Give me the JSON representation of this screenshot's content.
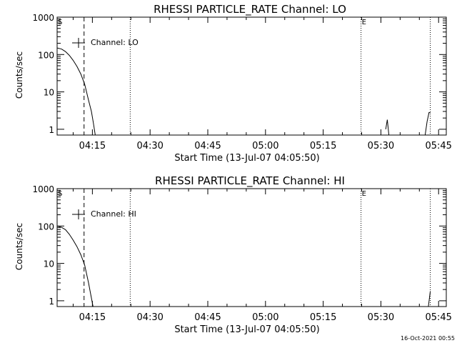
{
  "footer_timestamp": "16-Oct-2021 00:55",
  "chart_data": [
    {
      "type": "line",
      "title": "RHESSI PARTICLE_RATE Channel: LO",
      "xlabel": "Start Time (13-Jul-07 04:05:50)",
      "ylabel": "Counts/sec",
      "y_scale": "log",
      "ylim": [
        0.7,
        1000
      ],
      "xlim": [
        "04:05:50",
        "05:47:00"
      ],
      "x_ticks": [
        "04:15",
        "04:30",
        "04:45",
        "05:00",
        "05:15",
        "05:30",
        "05:45"
      ],
      "y_ticks": [
        "1",
        "10",
        "100",
        "1000"
      ],
      "legend": {
        "label": "Channel: LO",
        "position": "top-left"
      },
      "markers": [
        {
          "label": "S",
          "x": "04:05:50",
          "style": "dotted"
        },
        {
          "label": "",
          "x": "04:12:50",
          "style": "dashed"
        },
        {
          "label": "",
          "x": "04:24:50",
          "style": "dotted"
        },
        {
          "label": "E",
          "x": "05:24:50",
          "style": "dotted"
        },
        {
          "label": "",
          "x": "05:42:50",
          "style": "dotted"
        }
      ],
      "series": [
        {
          "values": [
            {
              "x": "04:05:50",
              "y": 150
            },
            {
              "x": "04:07:00",
              "y": 140
            },
            {
              "x": "04:08:00",
              "y": 120
            },
            {
              "x": "04:09:00",
              "y": 95
            },
            {
              "x": "04:10:00",
              "y": 70
            },
            {
              "x": "04:11:00",
              "y": 48
            },
            {
              "x": "04:12:00",
              "y": 30
            },
            {
              "x": "04:13:00",
              "y": 16
            },
            {
              "x": "04:14:00",
              "y": 6
            },
            {
              "x": "04:14:45",
              "y": 3
            },
            {
              "x": "04:15:15",
              "y": 1.5
            },
            {
              "x": "04:15:45",
              "y": 0.7
            }
          ]
        },
        {
          "values": [
            {
              "x": "05:31:15",
              "y": 1
            },
            {
              "x": "05:31:40",
              "y": 1.8
            },
            {
              "x": "05:32:05",
              "y": 0.7
            }
          ]
        },
        {
          "values": [
            {
              "x": "05:41:30",
              "y": 0.7
            },
            {
              "x": "05:42:00",
              "y": 1.6
            },
            {
              "x": "05:42:30",
              "y": 2.8
            },
            {
              "x": "05:42:50",
              "y": 2.8
            }
          ]
        }
      ]
    },
    {
      "type": "line",
      "title": "RHESSI PARTICLE_RATE Channel: HI",
      "xlabel": "Start Time (13-Jul-07 04:05:50)",
      "ylabel": "Counts/sec",
      "y_scale": "log",
      "ylim": [
        0.7,
        1000
      ],
      "xlim": [
        "04:05:50",
        "05:47:00"
      ],
      "x_ticks": [
        "04:15",
        "04:30",
        "04:45",
        "05:00",
        "05:15",
        "05:30",
        "05:45"
      ],
      "y_ticks": [
        "1",
        "10",
        "100",
        "1000"
      ],
      "legend": {
        "label": "Channel: HI",
        "position": "top-left"
      },
      "markers": [
        {
          "label": "S",
          "x": "04:05:50",
          "style": "dotted"
        },
        {
          "label": "",
          "x": "04:12:50",
          "style": "dashed"
        },
        {
          "label": "",
          "x": "04:24:50",
          "style": "dotted"
        },
        {
          "label": "E",
          "x": "05:24:50",
          "style": "dotted"
        },
        {
          "label": "",
          "x": "05:42:50",
          "style": "dotted"
        }
      ],
      "series": [
        {
          "values": [
            {
              "x": "04:05:50",
              "y": 100
            },
            {
              "x": "04:07:00",
              "y": 92
            },
            {
              "x": "04:08:00",
              "y": 80
            },
            {
              "x": "04:09:00",
              "y": 60
            },
            {
              "x": "04:10:00",
              "y": 42
            },
            {
              "x": "04:11:00",
              "y": 28
            },
            {
              "x": "04:12:00",
              "y": 17
            },
            {
              "x": "04:13:00",
              "y": 9
            },
            {
              "x": "04:14:00",
              "y": 3
            },
            {
              "x": "04:14:40",
              "y": 1.3
            },
            {
              "x": "04:15:10",
              "y": 0.7
            }
          ]
        },
        {
          "values": [
            {
              "x": "05:42:20",
              "y": 0.7
            },
            {
              "x": "05:42:50",
              "y": 1.8
            }
          ]
        }
      ]
    }
  ]
}
